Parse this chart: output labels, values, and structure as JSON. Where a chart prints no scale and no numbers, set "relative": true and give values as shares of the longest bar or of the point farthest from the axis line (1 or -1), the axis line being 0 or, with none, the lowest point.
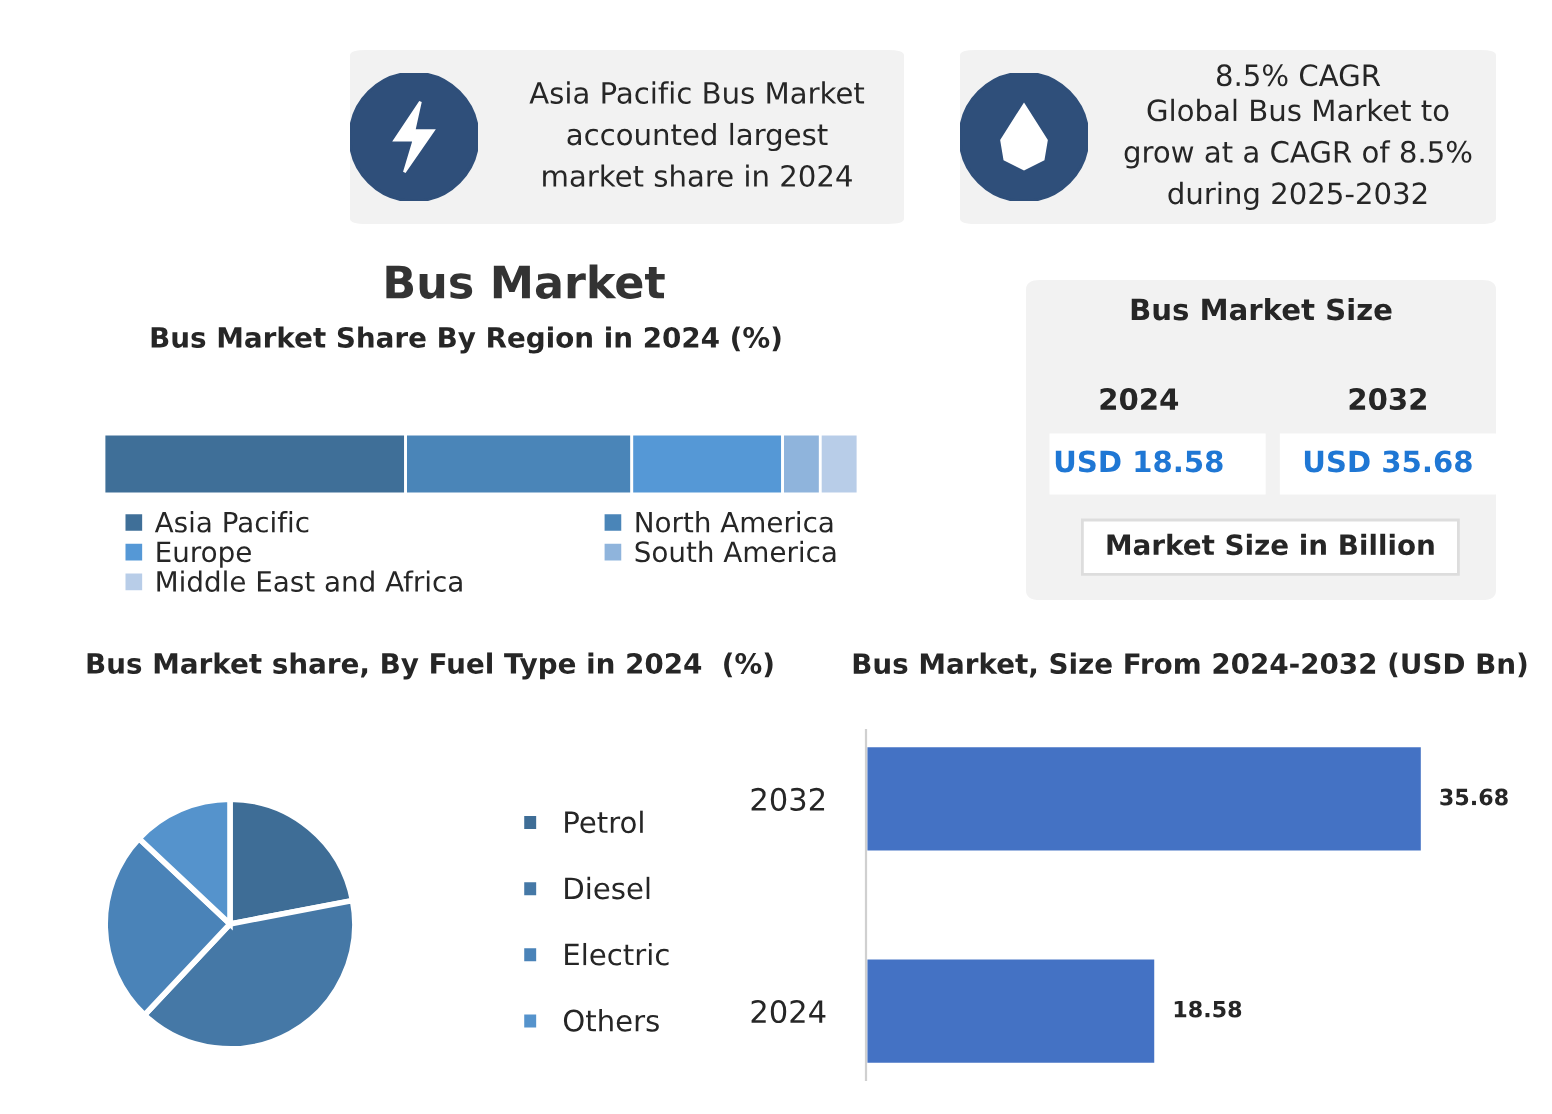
{
  "chart_data": [
    {
      "type": "other",
      "annotations": [
        "Asia Pacific Bus Market accounted largest market share in 2024"
      ]
    },
    {
      "type": "other",
      "title": "8.5% CAGR",
      "annotations": [
        "Global Bus Market to grow at a CAGR of 8.5% during 2025-2032"
      ]
    },
    {
      "type": "bar",
      "title": "Bus Market",
      "subtitle": "Bus Market Share By Region in 2024 (%)",
      "orientation": "horizontal",
      "stacked": true,
      "relative": true,
      "categories": [
        null
      ],
      "legend": "bottom",
      "grid": false,
      "series": [
        {
          "name": "Asia Pacific",
          "color": "#3f6f98",
          "values": [
            0.4
          ]
        },
        {
          "name": "North America",
          "color": "#4a85b8",
          "values": [
            0.3
          ]
        },
        {
          "name": "Europe",
          "color": "#5598d6",
          "values": [
            0.2
          ]
        },
        {
          "name": "South America",
          "color": "#8fb4dc",
          "values": [
            0.05
          ]
        },
        {
          "name": "Middle East and Africa",
          "color": "#b8cde8",
          "values": [
            0.05
          ]
        }
      ]
    },
    {
      "type": "other",
      "title": "Bus Market Size",
      "annotations": [
        "2024",
        "2032",
        "USD 18.58",
        "USD 35.68",
        "Market Size in Billion"
      ]
    },
    {
      "type": "pie",
      "title": "Bus Market share, By Fuel Type in 2024  (%)",
      "categories": [
        "Petrol",
        "Diesel",
        "Electric",
        "Others"
      ],
      "values": [
        22,
        40,
        25,
        13
      ],
      "colors": [
        "#3e6d96",
        "#4578a6",
        "#4a83b8",
        "#5593cc"
      ],
      "legend": "right"
    },
    {
      "type": "bar",
      "title": "Bus Market, Size From 2024-2032 (USD Bn)",
      "orientation": "horizontal",
      "categories": [
        "2032",
        "2024"
      ],
      "values": [
        35.68,
        18.58
      ],
      "color": "#4472c4",
      "tick_labels": "y",
      "data_labels": true,
      "grid": false
    }
  ]
}
